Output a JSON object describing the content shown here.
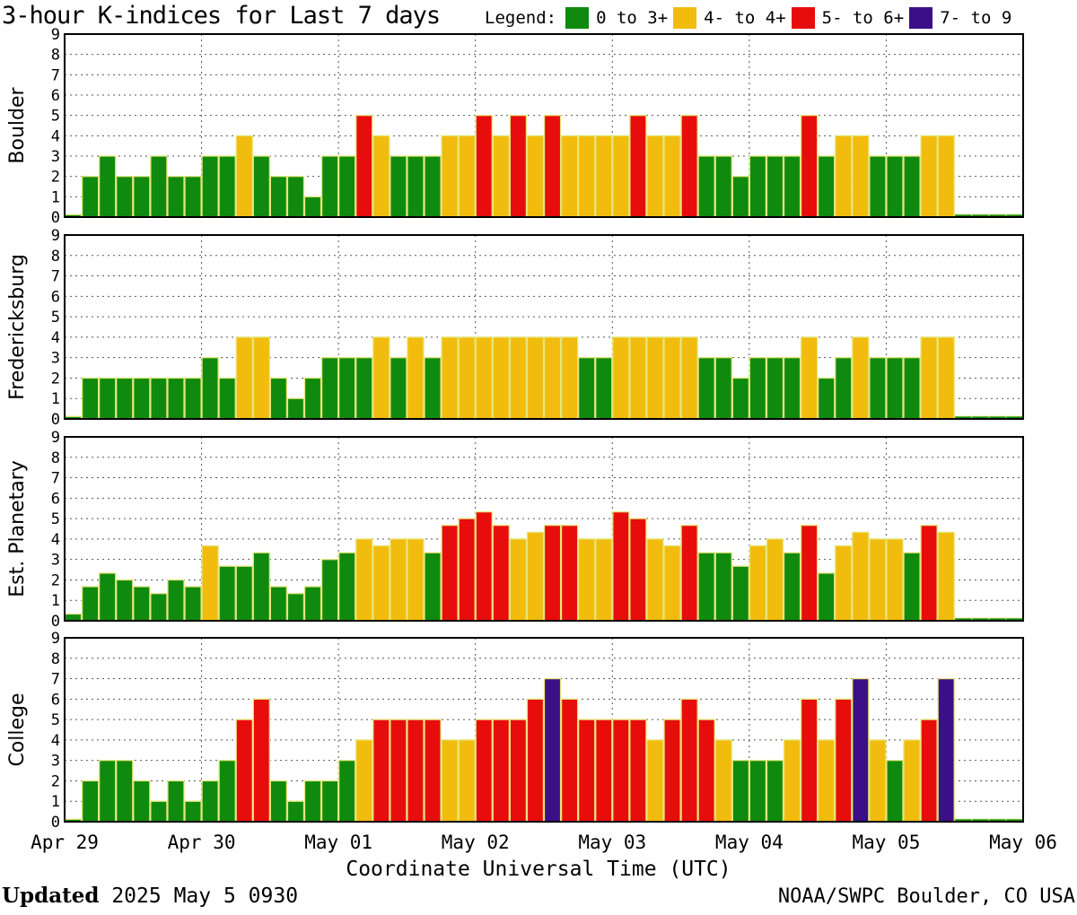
{
  "title": "3-hour K-indices for Last 7 days",
  "legend": {
    "label": "Legend:",
    "items": [
      {
        "label": "0 to 3+",
        "color": "#0f8a0f"
      },
      {
        "label": "4- to 4+",
        "color": "#f2bc0e"
      },
      {
        "label": "5- to 6+",
        "color": "#e80d0d"
      },
      {
        "label": "7- to 9",
        "color": "#3b0f87"
      }
    ]
  },
  "footer": {
    "updated_label": "Updated",
    "updated_value": "2025 May  5 0930",
    "credit": "NOAA/SWPC Boulder, CO USA"
  },
  "chart_data": {
    "type": "bar",
    "xlabel": "Coordinate Universal Time (UTC)",
    "x_tick_labels": [
      "Apr 29",
      "Apr 30",
      "May 01",
      "May 02",
      "May 03",
      "May 04",
      "May 05",
      "May 06"
    ],
    "bins": 56,
    "bin_hours": 3,
    "ylim": [
      0,
      9
    ],
    "yticks": [
      0,
      1,
      2,
      3,
      4,
      5,
      6,
      7,
      8,
      9
    ],
    "grid": true,
    "color_thresholds": [
      {
        "min": 0,
        "max": 3.67,
        "color_index": 0
      },
      {
        "min": 3.67,
        "max": 4.67,
        "color_index": 1
      },
      {
        "min": 4.67,
        "max": 6.67,
        "color_index": 2
      },
      {
        "min": 6.67,
        "max": 9,
        "color_index": 3
      }
    ],
    "series": [
      {
        "name": "Boulder",
        "values": [
          0,
          2,
          3,
          2,
          2,
          3,
          2,
          2,
          3,
          3,
          4,
          3,
          2,
          2,
          1,
          3,
          3,
          5,
          4,
          3,
          3,
          3,
          4,
          4,
          5,
          4,
          5,
          4,
          5,
          4,
          4,
          4,
          4,
          5,
          4,
          4,
          5,
          3,
          3,
          2,
          3,
          3,
          3,
          5,
          3,
          4,
          4,
          3,
          3,
          3,
          4,
          4,
          null,
          null,
          null,
          null
        ]
      },
      {
        "name": "Fredericksburg",
        "values": [
          0,
          2,
          2,
          2,
          2,
          2,
          2,
          2,
          3,
          2,
          4,
          4,
          2,
          1,
          2,
          3,
          3,
          3,
          4,
          3,
          4,
          3,
          4,
          4,
          4,
          4,
          4,
          4,
          4,
          4,
          3,
          3,
          4,
          4,
          4,
          4,
          4,
          3,
          3,
          2,
          3,
          3,
          3,
          4,
          2,
          3,
          4,
          3,
          3,
          3,
          4,
          4,
          null,
          null,
          null,
          null
        ]
      },
      {
        "name": "Est. Planetary",
        "values": [
          0.33,
          1.67,
          2.33,
          2,
          1.67,
          1.33,
          2,
          1.67,
          3.67,
          2.67,
          2.67,
          3.33,
          1.67,
          1.33,
          1.67,
          3,
          3.33,
          4,
          3.67,
          4,
          4,
          3.33,
          4.67,
          5,
          5.33,
          4.67,
          4,
          4.33,
          4.67,
          4.67,
          4,
          4,
          5.33,
          5,
          4,
          3.67,
          4.67,
          3.33,
          3.33,
          2.67,
          3.67,
          4,
          3.33,
          4.67,
          2.33,
          3.67,
          4.33,
          4,
          4,
          3.33,
          4.67,
          4.33,
          null,
          null,
          null,
          null
        ]
      },
      {
        "name": "College",
        "values": [
          0,
          2,
          3,
          3,
          2,
          1,
          2,
          1,
          2,
          3,
          5,
          6,
          2,
          1,
          2,
          2,
          3,
          4,
          5,
          5,
          5,
          5,
          4,
          4,
          5,
          5,
          5,
          6,
          7,
          6,
          5,
          5,
          5,
          5,
          4,
          5,
          6,
          5,
          4,
          3,
          3,
          3,
          4,
          6,
          4,
          6,
          7,
          4,
          3,
          4,
          5,
          7,
          null,
          null,
          null,
          null
        ]
      }
    ]
  }
}
